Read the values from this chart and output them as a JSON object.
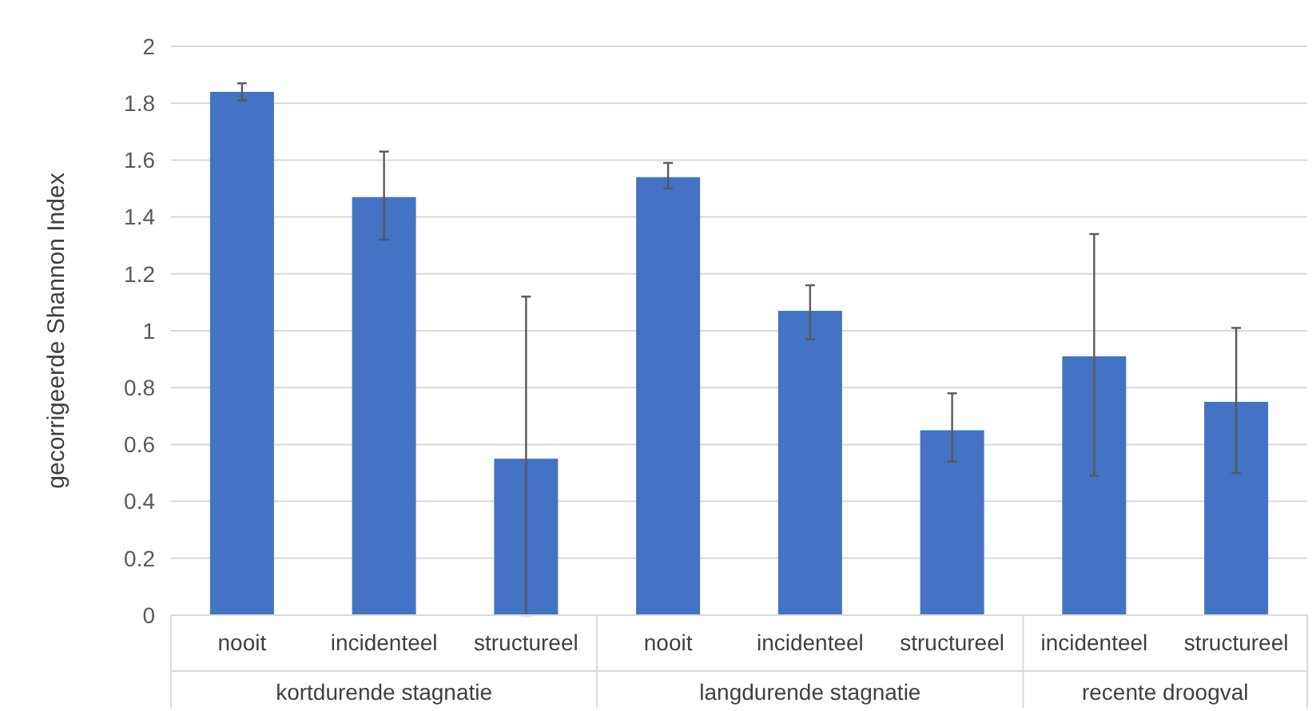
{
  "chart_data": {
    "type": "bar",
    "ylabel": "gecorrigeerde Shannon Index",
    "categories": [
      "nooit",
      "incidenteel",
      "structureel",
      "nooit",
      "incidenteel",
      "structureel",
      "incidenteel",
      "structureel"
    ],
    "values": [
      1.84,
      1.47,
      0.55,
      1.54,
      1.07,
      0.65,
      0.91,
      0.75
    ],
    "errors": [
      [
        1.81,
        1.87
      ],
      [
        1.32,
        1.63
      ],
      [
        0,
        1.12
      ],
      [
        1.5,
        1.59
      ],
      [
        0.97,
        1.16
      ],
      [
        0.54,
        0.78
      ],
      [
        0.49,
        1.34
      ],
      [
        0.5,
        1.01
      ]
    ],
    "color": "#4472c4",
    "ylim": [
      0,
      2
    ],
    "yticks": [
      0,
      0.2,
      0.4,
      0.6,
      0.8,
      1,
      1.2,
      1.4,
      1.6,
      1.8,
      2
    ],
    "grid": "y",
    "annotations": [
      "kortdurende stagnatie",
      "langdurende stagnatie",
      "recente droogval"
    ]
  }
}
